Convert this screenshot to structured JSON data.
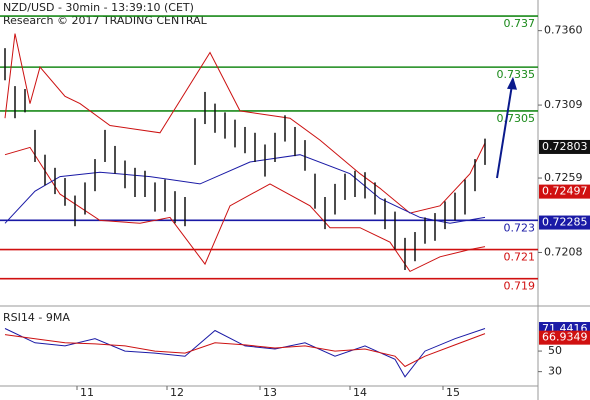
{
  "chart_data": {
    "type": "ohlc",
    "title": "NZD/USD - 30min - 13:39:10 (CET)",
    "subtitle": "Research © 2017 TRADING CENTRAL",
    "xlim": [
      -0.5,
      53.3
    ],
    "xticks": [
      {
        "value": 7.2,
        "label": "11"
      },
      {
        "value": 16.2,
        "label": "12"
      },
      {
        "value": 25.5,
        "label": "13"
      },
      {
        "value": 34.5,
        "label": "14"
      },
      {
        "value": 43.8,
        "label": "15"
      }
    ],
    "ylim": [
      0.7172,
      0.7381
    ],
    "yticks": [
      {
        "value": 0.736,
        "label": "0.7360"
      },
      0.7309,
      0.7259,
      0.7208
    ],
    "high": [
      0.7348,
      0.7322,
      0.732,
      0.7292,
      0.7275,
      0.7266,
      0.7259,
      0.7247,
      0.7256,
      0.7272,
      0.7292,
      0.7281,
      0.7271,
      0.7266,
      0.7264,
      0.7256,
      0.7258,
      0.725,
      0.7246,
      0.73,
      0.7318,
      0.731,
      0.7304,
      0.7299,
      0.7294,
      0.729,
      0.7282,
      0.729,
      0.7302,
      0.7294,
      0.7285,
      0.7262,
      0.7246,
      0.7255,
      0.7262,
      0.7264,
      0.7263,
      0.7256,
      0.7245,
      0.7236,
      0.7218,
      0.7222,
      0.7232,
      0.7235,
      0.7243,
      0.7249,
      0.7258,
      0.7272,
      0.7286
    ],
    "low": [
      0.7326,
      0.73,
      0.7304,
      0.727,
      0.7254,
      0.7248,
      0.724,
      0.7226,
      0.7234,
      0.725,
      0.727,
      0.7262,
      0.7252,
      0.7246,
      0.7246,
      0.7236,
      0.7236,
      0.7228,
      0.7226,
      0.7268,
      0.7296,
      0.729,
      0.7286,
      0.728,
      0.7276,
      0.727,
      0.726,
      0.727,
      0.7284,
      0.7274,
      0.7264,
      0.7238,
      0.7224,
      0.7234,
      0.7244,
      0.7246,
      0.7245,
      0.7234,
      0.7224,
      0.721,
      0.7196,
      0.7202,
      0.7214,
      0.7216,
      0.7224,
      0.723,
      0.7234,
      0.725,
      0.7268
    ],
    "bar_color": "#111111",
    "overlays": [
      {
        "color": "#cc1111",
        "x": [
          0,
          1,
          2.5,
          3.5,
          6,
          7.5,
          10.5,
          15.5,
          20.5,
          23.5,
          28.5,
          31.5,
          35.5,
          37.5,
          40.5,
          43.5,
          46.5,
          48
        ],
        "values": [
          0.73,
          0.7358,
          0.731,
          0.7335,
          0.7315,
          0.731,
          0.7295,
          0.729,
          0.7345,
          0.7305,
          0.73,
          0.7285,
          0.7262,
          0.7252,
          0.7235,
          0.724,
          0.7262,
          0.7283
        ]
      },
      {
        "color": "#cc1111",
        "x": [
          0,
          2.5,
          5.5,
          9.5,
          13.5,
          16.5,
          20,
          22.5,
          26.5,
          30.5,
          32.5,
          35.5,
          38.5,
          40.5,
          43.5,
          46.5,
          48
        ],
        "values": [
          0.7275,
          0.728,
          0.7248,
          0.723,
          0.7228,
          0.7232,
          0.72,
          0.724,
          0.7255,
          0.724,
          0.7225,
          0.7225,
          0.7215,
          0.7195,
          0.7205,
          0.721,
          0.7212
        ]
      },
      {
        "color": "#1a1aa6",
        "x": [
          0,
          3,
          5.5,
          9.5,
          14.5,
          19.5,
          24.5,
          29.5,
          34.5,
          37.5,
          41.5,
          44.5,
          48
        ],
        "values": [
          0.7228,
          0.725,
          0.726,
          0.7263,
          0.726,
          0.7255,
          0.727,
          0.7275,
          0.7262,
          0.7245,
          0.7232,
          0.7228,
          0.7232
        ]
      }
    ],
    "forecast": {
      "color": "#0a1a8c",
      "x": [
        49.2,
        50.8
      ],
      "values": [
        0.7259,
        0.7327
      ]
    },
    "levels": [
      {
        "value": 0.737,
        "color": "#1a8a1a"
      },
      {
        "value": 0.7335,
        "color": "#1a8a1a"
      },
      {
        "value": 0.7305,
        "color": "#1a8a1a"
      },
      {
        "value": 0.723,
        "color": "#1a1aa6"
      },
      {
        "value": 0.721,
        "color": "#d01010"
      },
      {
        "value": 0.719,
        "color": "#d01010"
      }
    ],
    "price_boxes": [
      {
        "value": 0.72803,
        "color": "#111111"
      },
      {
        "value": 0.72497,
        "color": "#d01010"
      },
      {
        "value": 0.72285,
        "color": "#1a1aa6"
      }
    ],
    "rsi": {
      "title": "RSI14 - 9MA",
      "ylim": [
        17,
        88
      ],
      "yticks": [
        50,
        30
      ],
      "x": [
        0,
        3,
        6,
        9,
        12,
        15,
        18,
        21,
        24,
        27,
        30,
        33,
        36,
        39,
        40,
        42,
        45,
        48
      ],
      "series": [
        {
          "color": "#1a1aa6",
          "values": [
            72,
            58,
            55,
            62,
            50,
            48,
            45,
            70,
            55,
            52,
            58,
            45,
            55,
            42,
            25,
            50,
            62,
            72
          ]
        },
        {
          "color": "#cc1111",
          "values": [
            66,
            62,
            58,
            57,
            55,
            50,
            48,
            58,
            56,
            53,
            55,
            50,
            52,
            45,
            35,
            45,
            56,
            67
          ]
        }
      ],
      "boxes": [
        {
          "value": 71.4416,
          "color": "#1a1aa6"
        },
        {
          "value": 66.9349,
          "color": "#d01010"
        }
      ]
    }
  }
}
